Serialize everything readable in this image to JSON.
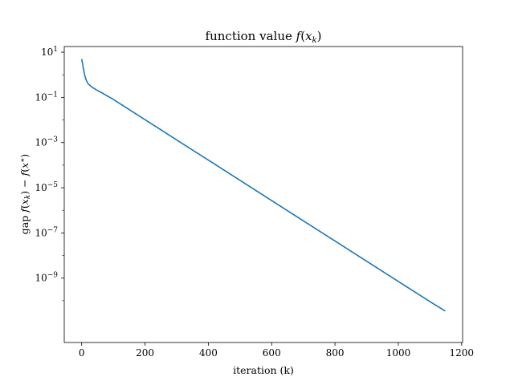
{
  "chart_data": {
    "type": "line",
    "title": "function value f(x_k)",
    "xlabel": "iteration (k)",
    "ylabel": "gap f(x_k) − f(x*)",
    "xlim": [
      -55,
      1203
    ],
    "ylim_log10": [
      -11.85,
      1.25
    ],
    "yscale": "log",
    "grid": false,
    "x_ticks": [
      0,
      200,
      400,
      600,
      800,
      1000,
      1200
    ],
    "y_ticks": [
      {
        "base": "10",
        "exp": "1",
        "value": 10
      },
      {
        "base": "10",
        "exp": "−1",
        "value": 0.1
      },
      {
        "base": "10",
        "exp": "−3",
        "value": 0.001
      },
      {
        "base": "10",
        "exp": "−5",
        "value": 1e-05
      },
      {
        "base": "10",
        "exp": "−7",
        "value": 1e-07
      },
      {
        "base": "10",
        "exp": "−9",
        "value": 1e-09
      }
    ],
    "series": [
      {
        "color": "#1f77b4",
        "x": [
          0,
          3,
          6,
          10,
          14,
          18,
          22,
          28,
          35,
          45,
          60,
          100,
          200,
          300,
          400,
          500,
          600,
          700,
          800,
          900,
          1000,
          1100,
          1148
        ],
        "y": [
          5.0,
          3.0,
          1.7,
          0.9,
          0.6,
          0.45,
          0.38,
          0.32,
          0.27,
          0.22,
          0.17,
          0.081,
          0.0103,
          0.00131,
          0.000167,
          2.12e-05,
          2.7e-06,
          3.44e-07,
          4.38e-08,
          5.58e-09,
          7.1e-10,
          9.05e-11,
          3.5e-11
        ]
      }
    ]
  }
}
